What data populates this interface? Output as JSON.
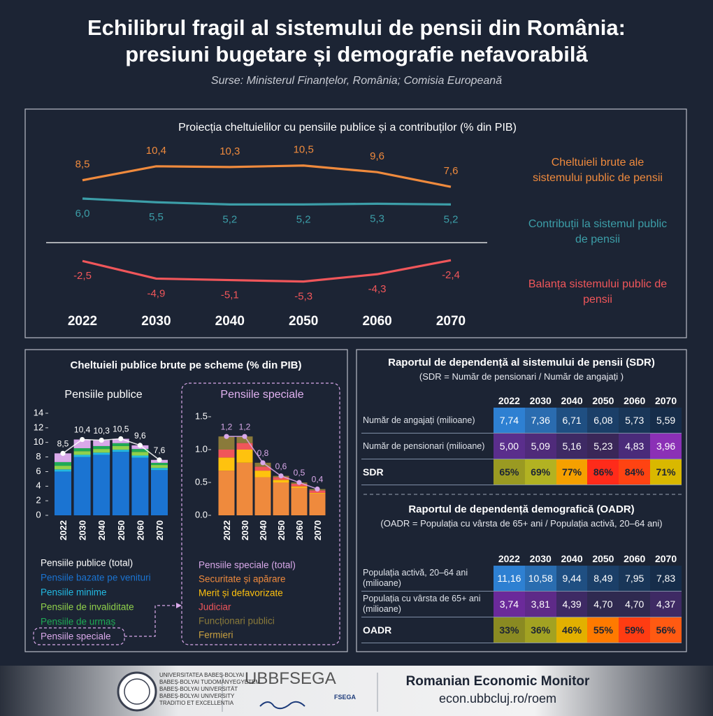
{
  "header": {
    "title_line1": "Echilibrul fragil al sistemului de pensii din România:",
    "title_line2": "presiuni bugetare și demografie nefavorabilă",
    "sources": "Surse: Ministerul Finanțelor, România; Comisia Europeană"
  },
  "schemes_title": "Cheltuieli publice brute pe scheme (% din PIB)",
  "chart_data": [
    {
      "type": "line",
      "title": "Proiecția cheltuielilor cu pensiile publice și a contribuților (% din PIB)",
      "categories": [
        "2022",
        "2030",
        "2040",
        "2050",
        "2060",
        "2070"
      ],
      "series": [
        {
          "name": "Cheltuieli brute ale sistemului public de pensii",
          "color": "#ef8a3d",
          "values": [
            8.5,
            10.4,
            10.3,
            10.5,
            9.6,
            7.6
          ],
          "value_labels": [
            "8,5",
            "10,4",
            "10,3",
            "10,5",
            "9,6",
            "7,6"
          ]
        },
        {
          "name": "Contribuții la sistemul public de pensii",
          "color": "#3c9ea8",
          "values": [
            6.0,
            5.5,
            5.2,
            5.2,
            5.3,
            5.2
          ],
          "value_labels": [
            "6,0",
            "5,5",
            "5,2",
            "5,2",
            "5,3",
            "5,2"
          ]
        },
        {
          "name": "Balanța sistemului public de pensii",
          "color": "#f0565a",
          "values": [
            -2.5,
            -4.9,
            -5.1,
            -5.3,
            -4.3,
            -2.4
          ],
          "value_labels": [
            "-2,5",
            "-4,9",
            "-5,1",
            "-5,3",
            "-4,3",
            "-2,4"
          ]
        }
      ]
    },
    {
      "type": "bar",
      "stacked": true,
      "title": "Pensiile publice",
      "categories": [
        "2022",
        "2030",
        "2040",
        "2050",
        "2060",
        "2070"
      ],
      "ylim": [
        0,
        14
      ],
      "yticks": [
        0,
        2,
        4,
        6,
        8,
        10,
        12,
        14
      ],
      "series": [
        {
          "name": "Pensiile publice (total)",
          "type": "line",
          "color": "#ffffff",
          "values": [
            8.5,
            10.4,
            10.3,
            10.5,
            9.6,
            7.6
          ],
          "value_labels": [
            "8,5",
            "10,4",
            "10,3",
            "10,5",
            "9,6",
            "7,6"
          ]
        },
        {
          "name": "Pensiile bazate pe venituri",
          "color": "#1b74d2",
          "values": [
            6.0,
            8.0,
            8.3,
            8.7,
            7.9,
            6.2
          ]
        },
        {
          "name": "Pensiile minime",
          "color": "#22b9e2",
          "values": [
            0.3,
            0.3,
            0.3,
            0.3,
            0.3,
            0.3
          ]
        },
        {
          "name": "Pensiile de invaliditate",
          "color": "#8fd14b",
          "values": [
            0.5,
            0.5,
            0.5,
            0.5,
            0.5,
            0.4
          ]
        },
        {
          "name": "Pensiile de urmaș",
          "color": "#1faa55",
          "values": [
            0.5,
            0.4,
            0.4,
            0.4,
            0.4,
            0.3
          ]
        },
        {
          "name": "Pensiile speciale",
          "color": "#d9a9ea",
          "values": [
            1.2,
            1.2,
            0.8,
            0.6,
            0.5,
            0.4
          ]
        }
      ]
    },
    {
      "type": "bar",
      "stacked": true,
      "title": "Pensiile speciale",
      "categories": [
        "2022",
        "2030",
        "2040",
        "2050",
        "2060",
        "2070"
      ],
      "ylim": [
        0,
        1.5
      ],
      "yticks": [
        {
          "value": 0,
          "label": "0.0"
        },
        0.5,
        {
          "value": 1,
          "label": "1.0"
        },
        1.5
      ],
      "series": [
        {
          "name": "Pensiile speciale (total)",
          "type": "line",
          "color": "#d9a9ea",
          "values": [
            1.2,
            1.2,
            0.8,
            0.6,
            0.5,
            0.4
          ],
          "value_labels": [
            "1,2",
            "1,2",
            "0,8",
            "0,6",
            "0,5",
            "0,4"
          ]
        },
        {
          "name": "Securitate și apărare",
          "color": "#ef8a3d",
          "values": [
            0.68,
            0.8,
            0.58,
            0.5,
            0.42,
            0.33
          ]
        },
        {
          "name": "Merit și defavorizate",
          "color": "#ffc20e",
          "values": [
            0.2,
            0.2,
            0.1,
            0.04,
            0.02,
            0.01
          ]
        },
        {
          "name": "Judiciar",
          "color": "#f0565a",
          "values": [
            0.12,
            0.1,
            0.06,
            0.04,
            0.04,
            0.04
          ]
        },
        {
          "name": "Funcționari publici",
          "color": "#8a7a3a",
          "values": [
            0.2,
            0.1,
            0.06,
            0.02,
            0.02,
            0.02
          ]
        },
        {
          "name": "Fermieri",
          "color": "#c8a040",
          "values": [
            0,
            0,
            0,
            0,
            0,
            0
          ]
        }
      ]
    }
  ],
  "tables": [
    {
      "title": "Raportul de dependență al sistemului de pensii (SDR)",
      "subtitle": "(SDR = Număr de pensionari / Număr de angajați )",
      "columns": [
        "2022",
        "2030",
        "2040",
        "2050",
        "2060",
        "2070"
      ],
      "rows": [
        {
          "label": "Număr de angajați (milioane)",
          "cells": [
            "7,74",
            "7,36",
            "6,71",
            "6,08",
            "5,73",
            "5,59"
          ],
          "colors": [
            "#2e80d2",
            "#2a6cb0",
            "#1f4f82",
            "#1b3f68",
            "#193658",
            "#162d4a"
          ]
        },
        {
          "label": "Număr de pensionari (milioane)",
          "cells": [
            "5,00",
            "5,09",
            "5,16",
            "5,23",
            "4,83",
            "3,96"
          ],
          "colors": [
            "#5a2e8c",
            "#4f2b7a",
            "#3e2a64",
            "#3a2758",
            "#4a2b7a",
            "#8b30b6"
          ]
        },
        {
          "label": "SDR",
          "cells": [
            "65%",
            "69%",
            "77%",
            "86%",
            "84%",
            "71%"
          ],
          "colors": [
            "#9a9a22",
            "#b2b222",
            "#f5a000",
            "#ff2b1a",
            "#ff4312",
            "#d9b800"
          ]
        }
      ]
    },
    {
      "title": "Raportul de dependență demografică (OADR)",
      "subtitle": "(OADR = Populația cu vârsta de 65+ ani / Populația activă, 20–64 ani)",
      "columns": [
        "2022",
        "2030",
        "2040",
        "2050",
        "2060",
        "2070"
      ],
      "rows": [
        {
          "label": "Populația activă, 20–64 ani (milioane)",
          "cells": [
            "11,16",
            "10,58",
            "9,44",
            "8,49",
            "7,95",
            "7,83"
          ],
          "colors": [
            "#2e80d2",
            "#2a6db0",
            "#1f4f82",
            "#1b3f68",
            "#193658",
            "#162d4a"
          ]
        },
        {
          "label": "Populația cu vârsta de 65+ ani (milioane)",
          "cells": [
            "3,74",
            "3,81",
            "4,39",
            "4,70",
            "4,70",
            "4,37"
          ],
          "colors": [
            "#6b2a9a",
            "#5e2a88",
            "#3e2a64",
            "#2f2a50",
            "#2f2a50",
            "#3e2a64"
          ]
        },
        {
          "label": "OADR",
          "cells": [
            "33%",
            "36%",
            "46%",
            "55%",
            "59%",
            "56%"
          ],
          "colors": [
            "#8a8a22",
            "#a2a222",
            "#e2b000",
            "#ff7a00",
            "#ff3c12",
            "#ff5a12"
          ]
        }
      ]
    }
  ],
  "footer": {
    "university_lines": [
      "UNIVERSITATEA BABEȘ-BOLYAI",
      "BABEȘ-BOLYAI TUDOMÁNYEGYETEM",
      "BABEȘ-BOLYAI UNIVERSITÄT",
      "BABEȘ-BOLYAI UNIVERSITY",
      "TRADITIO ET EXCELLENTIA"
    ],
    "faculty_logo": "UBBFSEGA",
    "faculty_badge": "FSEGA",
    "monitor_name": "Romanian Economic Monitor",
    "url": "econ.ubbcluj.ro/roem"
  }
}
